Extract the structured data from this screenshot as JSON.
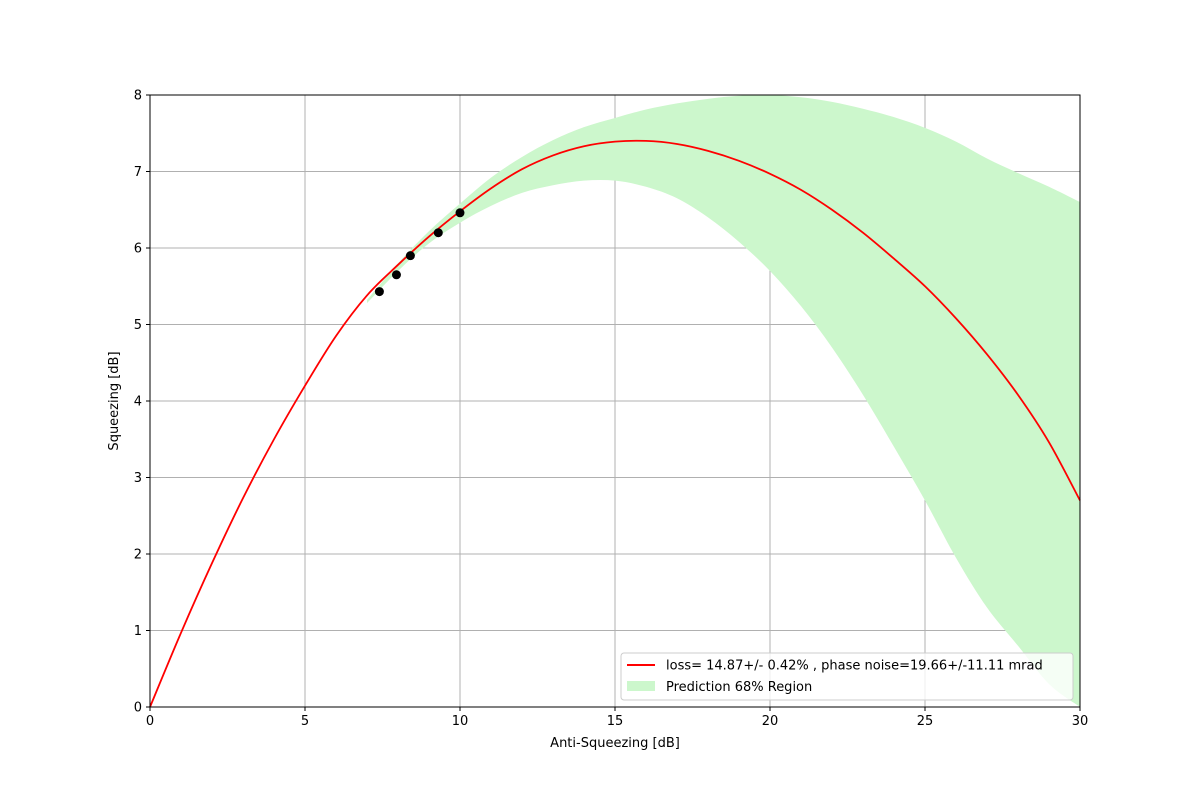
{
  "chart_data": {
    "type": "line",
    "xlabel": "Anti-Squeezing [dB]",
    "ylabel": "Squeezing [dB]",
    "xlim": [
      0,
      30
    ],
    "ylim": [
      0,
      8
    ],
    "xticks": [
      "0",
      "5",
      "10",
      "15",
      "20",
      "25",
      "30"
    ],
    "yticks": [
      "0",
      "1",
      "2",
      "3",
      "4",
      "5",
      "6",
      "7",
      "8"
    ],
    "grid": true,
    "legend_position": "lower-right",
    "series": [
      {
        "name": "loss= 14.87+/- 0.42% , phase noise=19.66+/-11.11 mrad",
        "kind": "line",
        "color": "#ff0000",
        "x": [
          0,
          1,
          2,
          3,
          4,
          5,
          6,
          7,
          8,
          9,
          10,
          11,
          12,
          13,
          14,
          15,
          16,
          17,
          18,
          19,
          20,
          21,
          22,
          23,
          24,
          25,
          26,
          27,
          28,
          29,
          30
        ],
        "y": [
          0.0,
          0.97,
          1.88,
          2.73,
          3.5,
          4.2,
          4.85,
          5.38,
          5.78,
          6.15,
          6.48,
          6.78,
          7.03,
          7.21,
          7.33,
          7.39,
          7.4,
          7.36,
          7.27,
          7.14,
          6.97,
          6.76,
          6.5,
          6.2,
          5.86,
          5.5,
          5.08,
          4.61,
          4.08,
          3.46,
          2.7
        ]
      },
      {
        "name": "Prediction 68% Region",
        "kind": "band",
        "color": "#ccf7cc",
        "x": [
          7,
          8,
          9,
          10,
          11,
          12,
          13,
          14,
          15,
          16,
          17,
          18,
          19,
          20,
          21,
          22,
          23,
          24,
          25,
          26,
          27,
          28,
          29,
          30
        ],
        "upper": [
          5.32,
          5.8,
          6.22,
          6.58,
          6.92,
          7.19,
          7.41,
          7.58,
          7.7,
          7.81,
          7.89,
          7.95,
          7.99,
          8.0,
          7.97,
          7.91,
          7.82,
          7.71,
          7.57,
          7.39,
          7.17,
          6.98,
          6.8,
          6.6
        ],
        "lower": [
          5.28,
          5.7,
          6.06,
          6.33,
          6.55,
          6.72,
          6.82,
          6.88,
          6.88,
          6.8,
          6.65,
          6.4,
          6.08,
          5.7,
          5.24,
          4.7,
          4.08,
          3.4,
          2.7,
          1.95,
          1.3,
          0.8,
          0.3,
          0.0
        ]
      },
      {
        "name": "",
        "kind": "scatter",
        "color": "#000000",
        "x": [
          7.4,
          7.95,
          8.4,
          9.3,
          10.0
        ],
        "y": [
          5.43,
          5.65,
          5.9,
          6.2,
          6.46
        ]
      }
    ]
  }
}
